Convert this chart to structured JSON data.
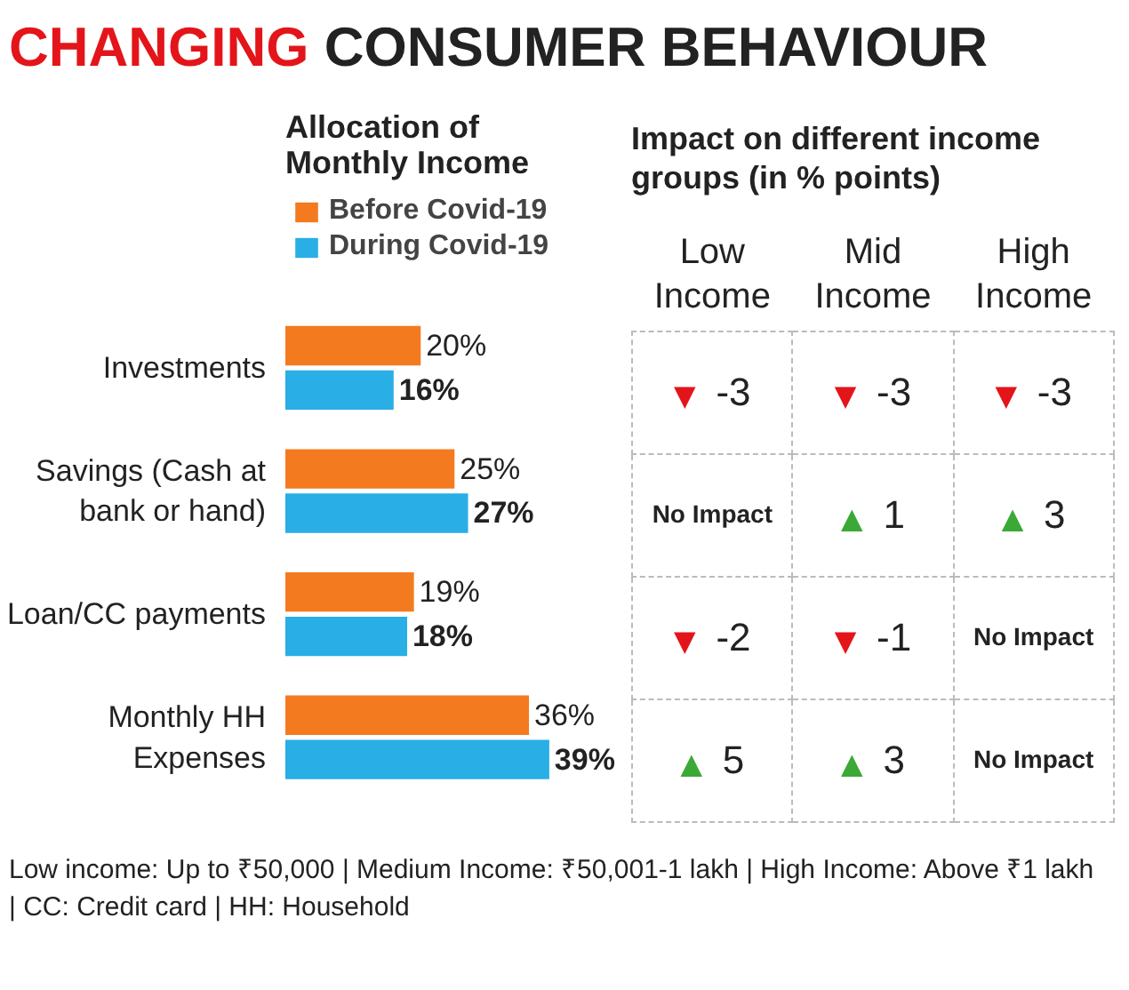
{
  "chart_data": [
    {
      "type": "bar",
      "orientation": "horizontal",
      "title": "CHANGING CONSUMER BEHAVIOUR",
      "subtitle": "Allocation of Monthly Income",
      "categories": [
        "Investments",
        "Savings (Cash at bank or hand)",
        "Loan/CC payments",
        "Monthly HH Expenses"
      ],
      "series": [
        {
          "name": "Before Covid-19",
          "color": "#f47a20",
          "values": [
            20,
            25,
            19,
            36
          ],
          "value_labels": [
            "20%",
            "25%",
            "19%",
            "36%"
          ]
        },
        {
          "name": "During Covid-19",
          "color": "#29aee6",
          "values": [
            16,
            27,
            18,
            39
          ],
          "value_labels": [
            "16%",
            "27%",
            "18%",
            "39%"
          ]
        }
      ],
      "legend": "top left",
      "grid": false,
      "annotations": [
        "Low income: Up to ₹50,000 | Medium Income: ₹50,001-1 lakh | High Income: Above ₹1 lakh | CC: Credit card | HH: Household"
      ]
    },
    {
      "type": "other",
      "title": "Impact on different income groups (in % points)",
      "categories": [
        "Low Income",
        "Mid Income",
        "High Income"
      ],
      "annotations": [
        "▼ -3",
        "▼ -3",
        "▼ -3",
        "No Impact",
        "▲ 1",
        "▲ 3",
        "▼ -2",
        "▼ -1",
        "No Impact",
        "▲ 5",
        "▲ 3",
        "No Impact"
      ]
    }
  ]
}
